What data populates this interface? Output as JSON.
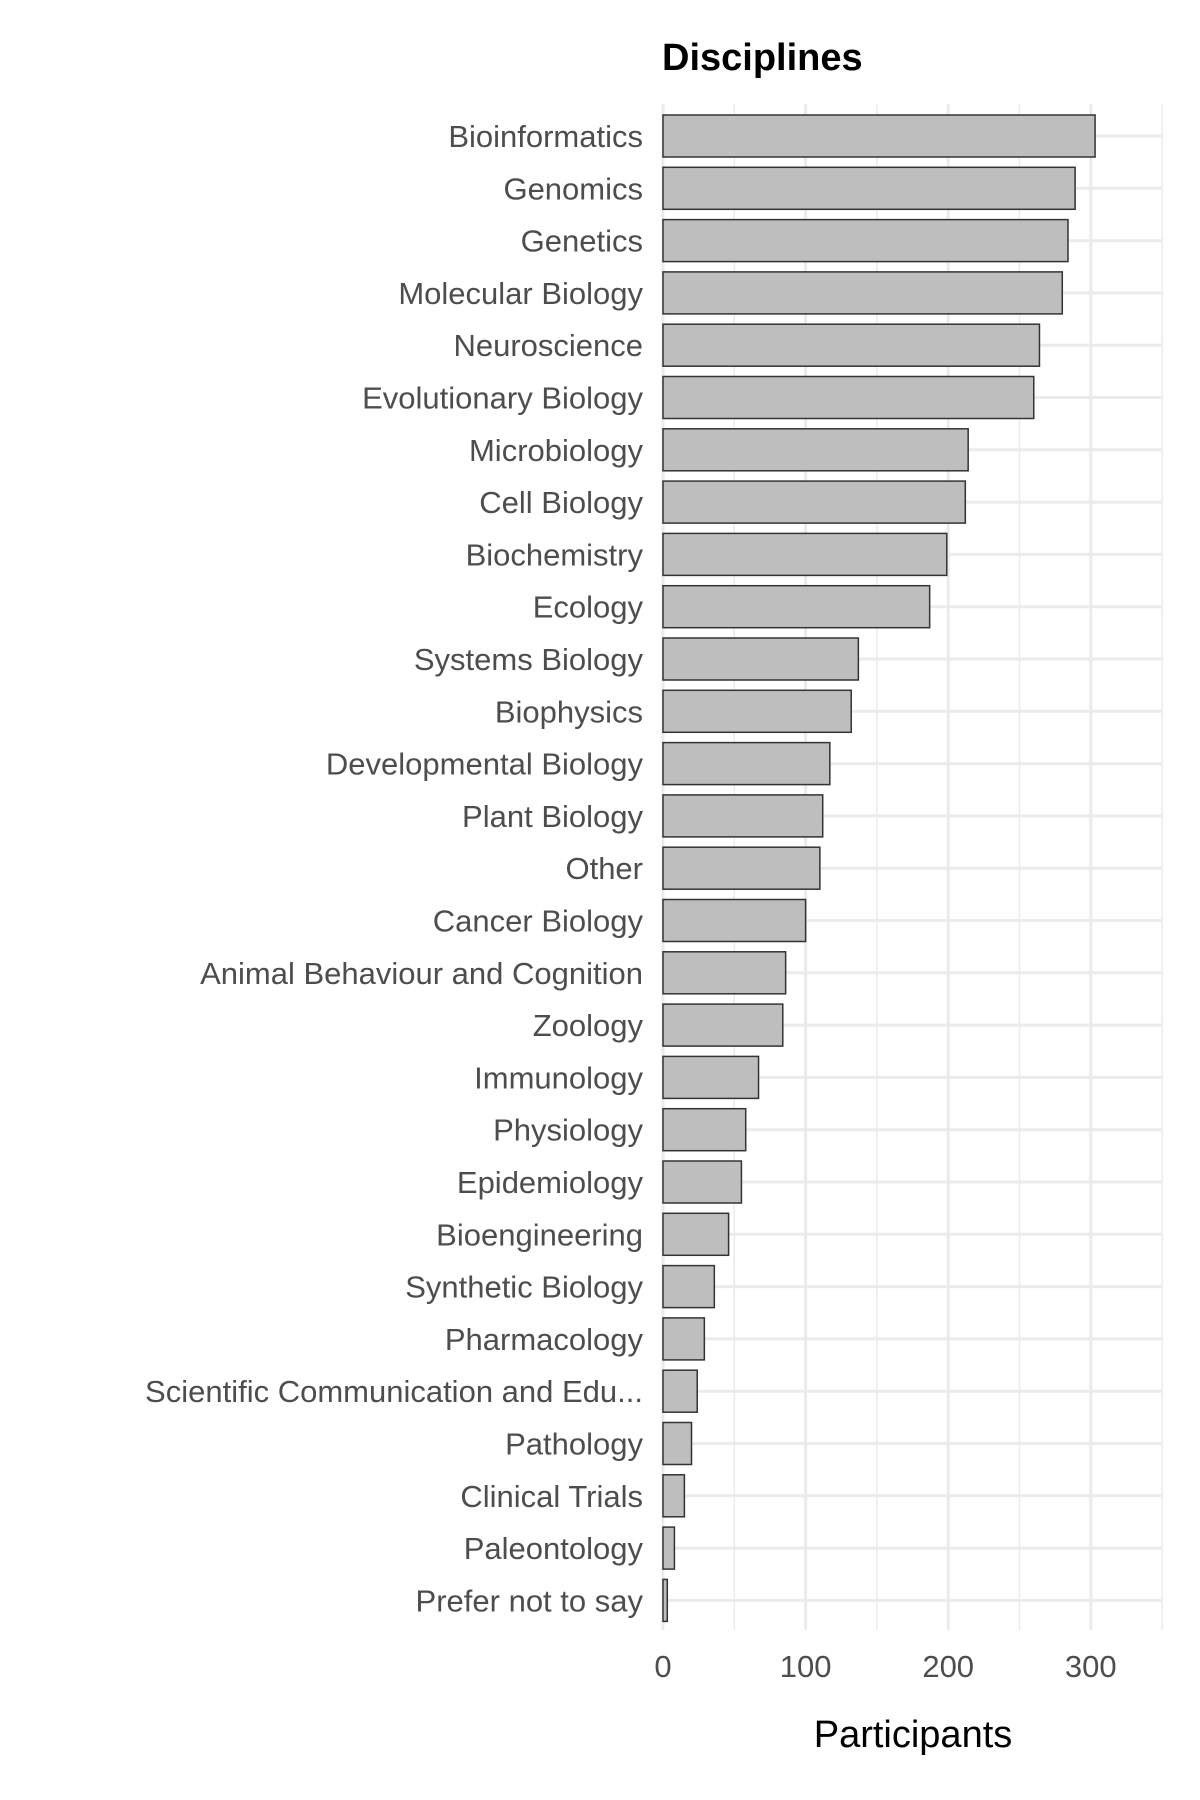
{
  "chart_data": {
    "type": "bar",
    "orientation": "horizontal",
    "title": "Disciplines",
    "xlabel": "Participants",
    "ylabel": "",
    "xlim": [
      0,
      350
    ],
    "x_ticks": [
      0,
      100,
      200,
      300
    ],
    "grid": true,
    "bar_color": "#bebebe",
    "bar_outline": "#333333",
    "categories": [
      "Bioinformatics",
      "Genomics",
      "Genetics",
      "Molecular Biology",
      "Neuroscience",
      "Evolutionary Biology",
      "Microbiology",
      "Cell Biology",
      "Biochemistry",
      "Ecology",
      "Systems Biology",
      "Biophysics",
      "Developmental Biology",
      "Plant Biology",
      "Other",
      "Cancer Biology",
      "Animal Behaviour and Cognition",
      "Zoology",
      "Immunology",
      "Physiology",
      "Epidemiology",
      "Bioengineering",
      "Synthetic Biology",
      "Pharmacology",
      "Scientific Communication and Edu...",
      "Pathology",
      "Clinical Trials",
      "Paleontology",
      "Prefer not to say"
    ],
    "values": [
      303,
      289,
      284,
      280,
      264,
      260,
      214,
      212,
      199,
      187,
      137,
      132,
      117,
      112,
      110,
      100,
      86,
      84,
      67,
      58,
      55,
      46,
      36,
      29,
      24,
      20,
      15,
      8,
      3
    ]
  }
}
